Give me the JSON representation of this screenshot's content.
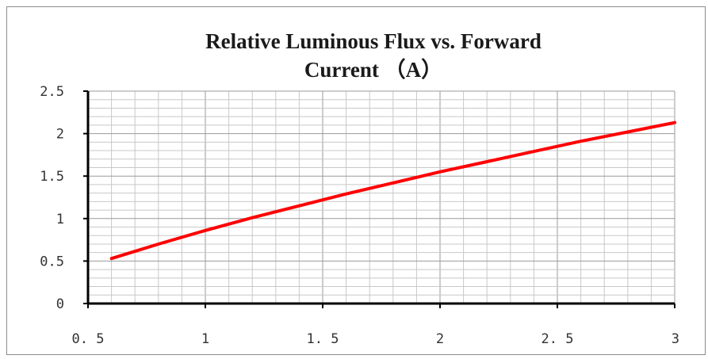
{
  "chart_data": {
    "type": "line",
    "title_lines": [
      "Relative Luminous Flux vs. Forward",
      "Current  （A）"
    ],
    "xlabel": "",
    "ylabel": "",
    "xlim": [
      0.5,
      3
    ],
    "ylim": [
      0,
      2.5
    ],
    "x_ticks": [
      0.5,
      1,
      1.5,
      2,
      2.5,
      3
    ],
    "x_tick_labels": [
      "0. 5",
      "1",
      "1. 5",
      "2",
      "2. 5",
      "3"
    ],
    "y_ticks": [
      0,
      0.5,
      1,
      1.5,
      2,
      2.5
    ],
    "y_tick_labels": [
      "0",
      "0.5",
      "1",
      "1.5",
      "2",
      "2.5"
    ],
    "grid": true,
    "legend": "none",
    "series": [
      {
        "color": "#ff0000",
        "x": [
          0.6,
          0.8,
          1.0,
          1.2,
          1.4,
          1.6,
          1.8,
          2.0,
          2.2,
          2.4,
          2.6,
          2.8,
          3.0
        ],
        "y": [
          0.53,
          0.7,
          0.86,
          1.01,
          1.15,
          1.29,
          1.42,
          1.55,
          1.67,
          1.79,
          1.91,
          2.02,
          2.13
        ]
      }
    ]
  }
}
